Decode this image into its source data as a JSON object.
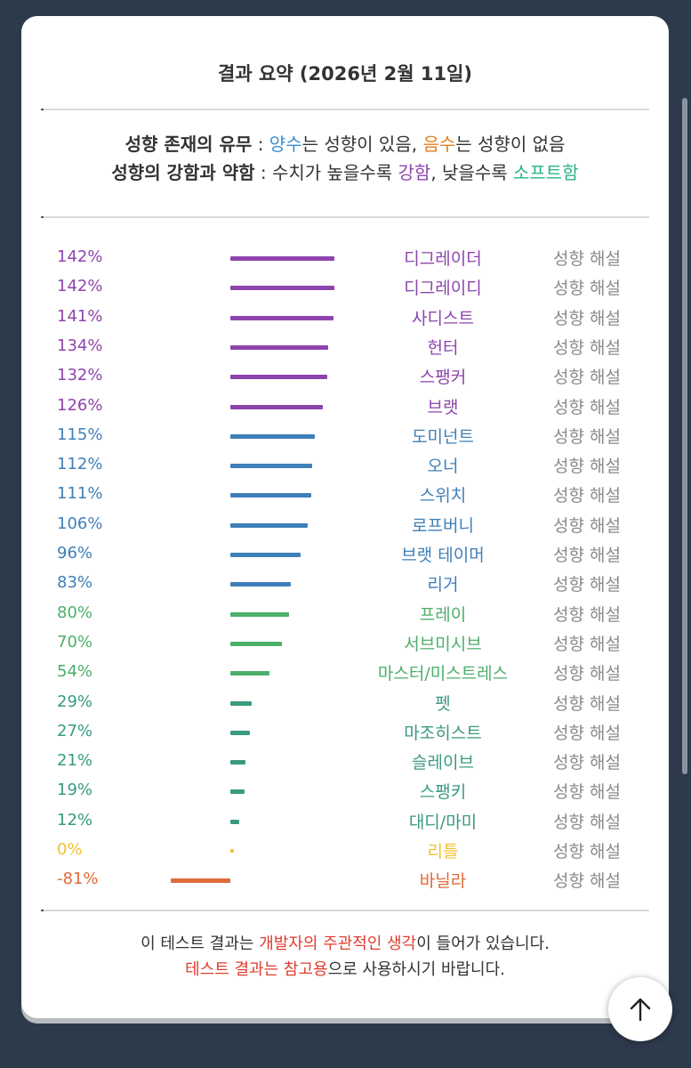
{
  "header": {
    "title": "결과 요약 (2026년 2월 11일)"
  },
  "legend": {
    "line1": {
      "label": "성향 존재의 유무",
      "sep": " : ",
      "positive": "양수",
      "positive_text": "는 성향이 있음, ",
      "negative": "음수",
      "negative_text": "는 성향이 없음"
    },
    "line2": {
      "label": "성향의 강함과 약함",
      "sep": " : ",
      "text1": "수치가 높을수록 ",
      "strong": "강함",
      "text2": ", 낮을수록 ",
      "soft": "소프트함"
    }
  },
  "colors": {
    "purple": "#8e44ad",
    "blue": "#3f7fb8",
    "green": "#4caf6a",
    "teal": "#3a9a82",
    "yellow": "#f1c232",
    "orange": "#e06b3a"
  },
  "explain_label": "성향 해설",
  "chart_data": {
    "type": "bar",
    "orientation": "horizontal",
    "categories": [
      "디그레이더",
      "디그레이디",
      "사디스트",
      "헌터",
      "스팽커",
      "브랫",
      "도미넌트",
      "오너",
      "스위치",
      "로프버니",
      "브랫 테이머",
      "리거",
      "프레이",
      "서브미시브",
      "마스터/미스트레스",
      "펫",
      "마조히스트",
      "슬레이브",
      "스팽키",
      "대디/마미",
      "리틀",
      "바닐라"
    ],
    "values": [
      142,
      142,
      141,
      134,
      132,
      126,
      115,
      112,
      111,
      106,
      96,
      83,
      80,
      70,
      54,
      29,
      27,
      21,
      19,
      12,
      0,
      -81
    ],
    "labels": [
      "142%",
      "142%",
      "141%",
      "134%",
      "132%",
      "126%",
      "115%",
      "112%",
      "111%",
      "106%",
      "96%",
      "83%",
      "80%",
      "70%",
      "54%",
      "29%",
      "27%",
      "21%",
      "19%",
      "12%",
      "0%",
      "-81%"
    ],
    "bar_colors": [
      "purple",
      "purple",
      "purple",
      "purple",
      "purple",
      "purple",
      "blue",
      "blue",
      "blue",
      "blue",
      "blue",
      "blue",
      "green",
      "green",
      "green",
      "teal",
      "teal",
      "teal",
      "teal",
      "teal",
      "yellow",
      "orange"
    ],
    "unit": "%"
  },
  "footer": {
    "line1_a": "이 테스트 결과는 ",
    "line1_b": "개발자의 주관적인 생각",
    "line1_c": "이 들어가 있습니다.",
    "line2_a": "테스트 결과는 참고용",
    "line2_b": "으로 사용하시기 바랍니다."
  },
  "scroll_top_icon": "arrow-up-icon"
}
